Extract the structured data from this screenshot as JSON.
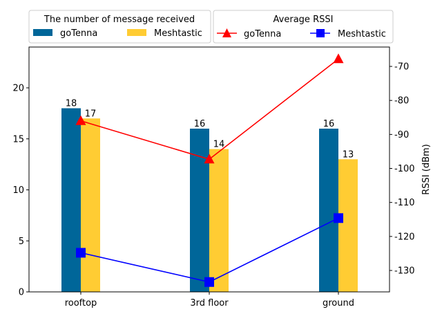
{
  "chart_data": {
    "type": "bar",
    "categories": [
      "rooftop",
      "3rd floor",
      "ground"
    ],
    "bar_legend_title": "The number of message received",
    "line_legend_title": "Average RSSI",
    "series": [
      {
        "name": "goTenna",
        "type": "bar",
        "axis": "left",
        "color": "#006699",
        "values": [
          18,
          16,
          16
        ]
      },
      {
        "name": "Meshtastic",
        "type": "bar",
        "axis": "left",
        "color": "#FFCC33",
        "values": [
          17,
          14,
          13
        ]
      },
      {
        "name": "goTenna",
        "type": "line",
        "axis": "right",
        "color": "#FF0000",
        "marker": "triangle",
        "values": [
          -86.0,
          -97.3,
          -67.8
        ]
      },
      {
        "name": "Meshtastic",
        "type": "line",
        "axis": "right",
        "color": "#0000FF",
        "marker": "square",
        "values": [
          -124.8,
          -133.4,
          -114.6
        ]
      }
    ],
    "left_axis": {
      "label": "",
      "ylim": [
        0,
        24
      ],
      "ticks": [
        0,
        5,
        10,
        15,
        20
      ]
    },
    "right_axis": {
      "label": "RSSI (dBm)",
      "ylim": [
        -136.3,
        -64.3
      ],
      "ticks": [
        -130,
        -120,
        -110,
        -100,
        -90,
        -80,
        -70
      ]
    },
    "legend_placement": "above plot, two boxes side by side",
    "grid": false
  }
}
